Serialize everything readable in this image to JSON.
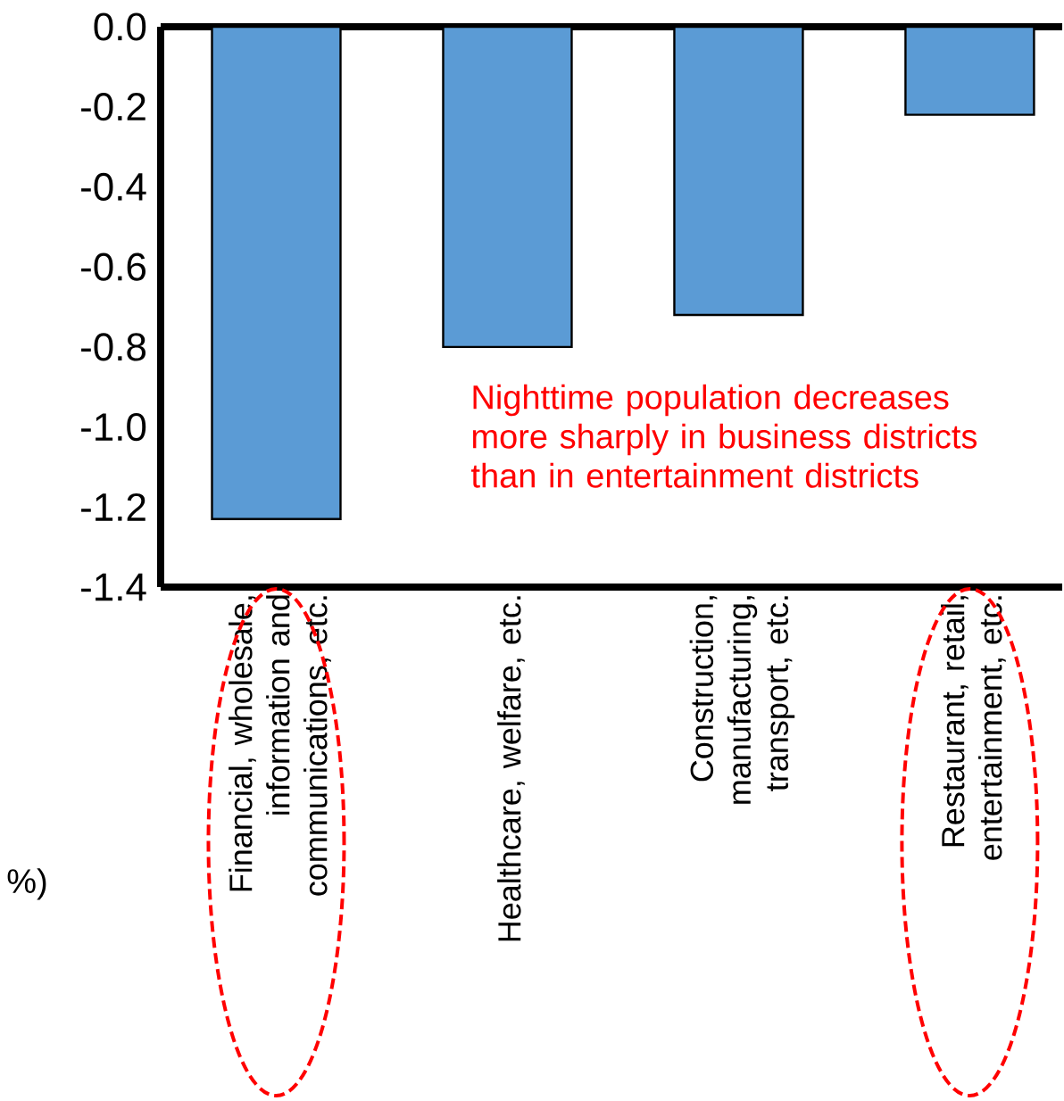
{
  "chart_data": {
    "type": "bar",
    "categories": [
      "Financial, wholesale, information and communications, etc.",
      "Healthcare, welfare, etc.",
      "Construction, manufacturing, transport, etc.",
      "Restaurant, retail, entertainment, etc."
    ],
    "values": [
      -1.23,
      -0.8,
      -0.72,
      -0.22
    ],
    "color": "#5b9bd5",
    "ylim": [
      -1.4,
      0
    ],
    "yticks": [
      -1.4,
      -1.2,
      {
        "value": -1.0,
        "label": "-1.0"
      },
      -0.8,
      -0.6,
      -0.4,
      -0.2,
      {
        "value": 0.0,
        "label": "0.0"
      }
    ],
    "annotations": [
      "Nighttime population decreases more sharply in business districts than in entertainment districts",
      "%)"
    ]
  }
}
